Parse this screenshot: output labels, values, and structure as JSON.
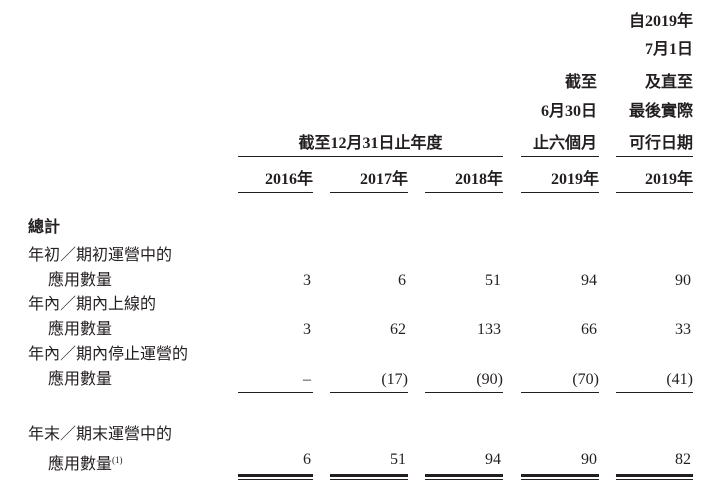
{
  "header": {
    "group_label": "截至12月31日止年度",
    "col4_lines": [
      "截至",
      "6月30日",
      "止六個月"
    ],
    "col5_lines": [
      "自2019年",
      "7月1日",
      "及直至",
      "最後實際",
      "可行日期"
    ],
    "years": [
      "2016年",
      "2017年",
      "2018年",
      "2019年",
      "2019年"
    ]
  },
  "section_title": "總計",
  "rows": [
    {
      "label1": "年初／期初運營中的",
      "label2": "應用數量",
      "values": [
        "3",
        "6",
        "51",
        "94",
        "90"
      ]
    },
    {
      "label1": "年內／期內上線的",
      "label2": "應用數量",
      "values": [
        "3",
        "62",
        "133",
        "66",
        "33"
      ]
    },
    {
      "label1": "年內／期內停止運營的",
      "label2": "應用數量",
      "values": [
        "–",
        "(17)",
        "(90)",
        "(70)",
        "(41)"
      ]
    }
  ],
  "total": {
    "label1": "年末／期末運營中的",
    "label2": "應用數量",
    "footnote": "(1)",
    "values": [
      "6",
      "51",
      "94",
      "90",
      "82"
    ]
  }
}
